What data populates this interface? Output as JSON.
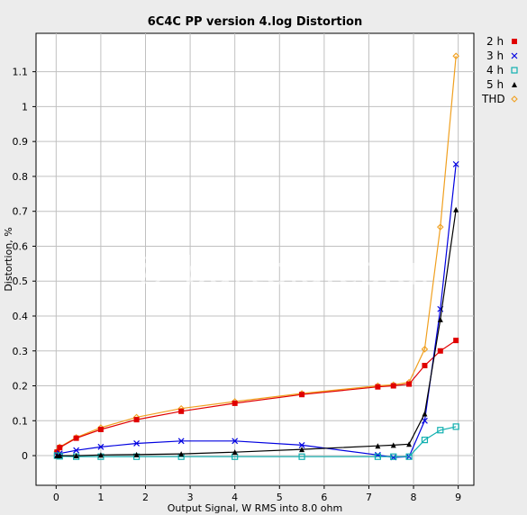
{
  "chart_data": {
    "type": "line",
    "title": "6C4C PP version 4.log Distortion",
    "xlabel": "Output Signal, W RMS into 8.0 ohm",
    "ylabel": "Distortion, %",
    "xlim": [
      -0.45,
      9.35
    ],
    "ylim": [
      -0.085,
      1.21
    ],
    "xticks": [
      "0",
      "1",
      "2",
      "3",
      "4",
      "5",
      "6",
      "7",
      "8",
      "9"
    ],
    "yticks": [
      "0",
      "0.1",
      "0.2",
      "0.3",
      "0.4",
      "0.5",
      "0.6",
      "0.7",
      "0.8",
      "0.9",
      "1",
      "1.1"
    ],
    "grid": true,
    "legend_position": "top-right",
    "watermark": "© bartola.co.uk",
    "series": [
      {
        "name": "THD",
        "color": "#f0a020",
        "marker": "diamond",
        "x": [
          0.02,
          0.08,
          0.45,
          1.0,
          1.8,
          2.8,
          4.0,
          5.5,
          7.2,
          7.55,
          7.9,
          8.25,
          8.6,
          8.95
        ],
        "y": [
          0.012,
          0.025,
          0.052,
          0.08,
          0.11,
          0.135,
          0.155,
          0.178,
          0.2,
          0.203,
          0.21,
          0.305,
          0.655,
          1.145
        ]
      },
      {
        "name": "2 h",
        "color": "#e00000",
        "marker": "square-filled",
        "x": [
          0.02,
          0.08,
          0.45,
          1.0,
          1.8,
          2.8,
          4.0,
          5.5,
          7.2,
          7.55,
          7.9,
          8.25,
          8.6,
          8.95
        ],
        "y": [
          0.01,
          0.023,
          0.05,
          0.075,
          0.103,
          0.127,
          0.15,
          0.175,
          0.197,
          0.2,
          0.205,
          0.258,
          0.3,
          0.33
        ]
      },
      {
        "name": "3 h",
        "color": "#0000e0",
        "marker": "x",
        "x": [
          0.02,
          0.08,
          0.45,
          1.0,
          1.8,
          2.8,
          4.0,
          5.5,
          7.2,
          7.55,
          7.9,
          8.25,
          8.6,
          8.95
        ],
        "y": [
          0.002,
          0.006,
          0.015,
          0.025,
          0.035,
          0.042,
          0.042,
          0.03,
          0.002,
          -0.005,
          -0.003,
          0.1,
          0.42,
          0.835
        ]
      },
      {
        "name": "4 h",
        "color": "#10b0b0",
        "marker": "square-open",
        "x": [
          0.02,
          0.08,
          0.45,
          1.0,
          1.8,
          2.8,
          4.0,
          5.5,
          7.2,
          7.55,
          7.9,
          8.25,
          8.6,
          8.95
        ],
        "y": [
          0.0,
          -0.002,
          -0.003,
          -0.003,
          -0.003,
          -0.003,
          -0.003,
          -0.003,
          -0.003,
          -0.003,
          -0.003,
          0.045,
          0.073,
          0.083
        ]
      },
      {
        "name": "5 h",
        "color": "#000000",
        "marker": "triangle",
        "x": [
          0.02,
          0.08,
          0.45,
          1.0,
          1.8,
          2.8,
          4.0,
          5.5,
          7.2,
          7.55,
          7.9,
          8.25,
          8.6,
          8.95
        ],
        "y": [
          0.0,
          0.0,
          0.0,
          0.002,
          0.003,
          0.005,
          0.01,
          0.018,
          0.028,
          0.03,
          0.033,
          0.12,
          0.39,
          0.705
        ]
      }
    ],
    "legend_order": [
      "2 h",
      "3 h",
      "4 h",
      "5 h",
      "THD"
    ]
  }
}
